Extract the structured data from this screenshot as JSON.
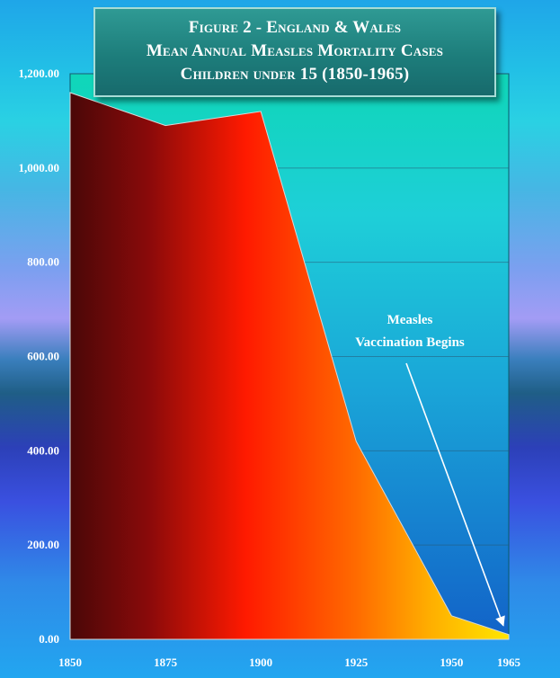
{
  "chart_data": {
    "type": "area",
    "title_lines": [
      "Figure 2  - England & Wales",
      "Mean Annual Measles Mortality Cases",
      "Children under 15 (1850-1965)"
    ],
    "x": [
      1850,
      1875,
      1900,
      1925,
      1950,
      1965
    ],
    "values": [
      1160,
      1090,
      1120,
      420,
      50,
      10
    ],
    "x_tick_labels": [
      "1850",
      "1875",
      "1900",
      "1925",
      "1950",
      "1965"
    ],
    "y_tick_labels": [
      "0.00",
      "200.00",
      "400.00",
      "600.00",
      "800.00",
      "1,000.00",
      "1,200.00"
    ],
    "y_ticks": [
      0,
      200,
      400,
      600,
      800,
      1000,
      1200
    ],
    "xlim": [
      1850,
      1965
    ],
    "ylim": [
      0,
      1200
    ],
    "grid": true,
    "annotation": {
      "lines": [
        "Measles",
        "Vaccination Begins"
      ],
      "points_to_x": 1965
    },
    "colors": {
      "fill_left": "#4a0808",
      "fill_mid": "#ff1a00",
      "fill_right": "#ffe600",
      "plot_top": "#0fd6b8",
      "plot_bottom": "#1262c8",
      "title_box": "#1d7d7b"
    }
  }
}
